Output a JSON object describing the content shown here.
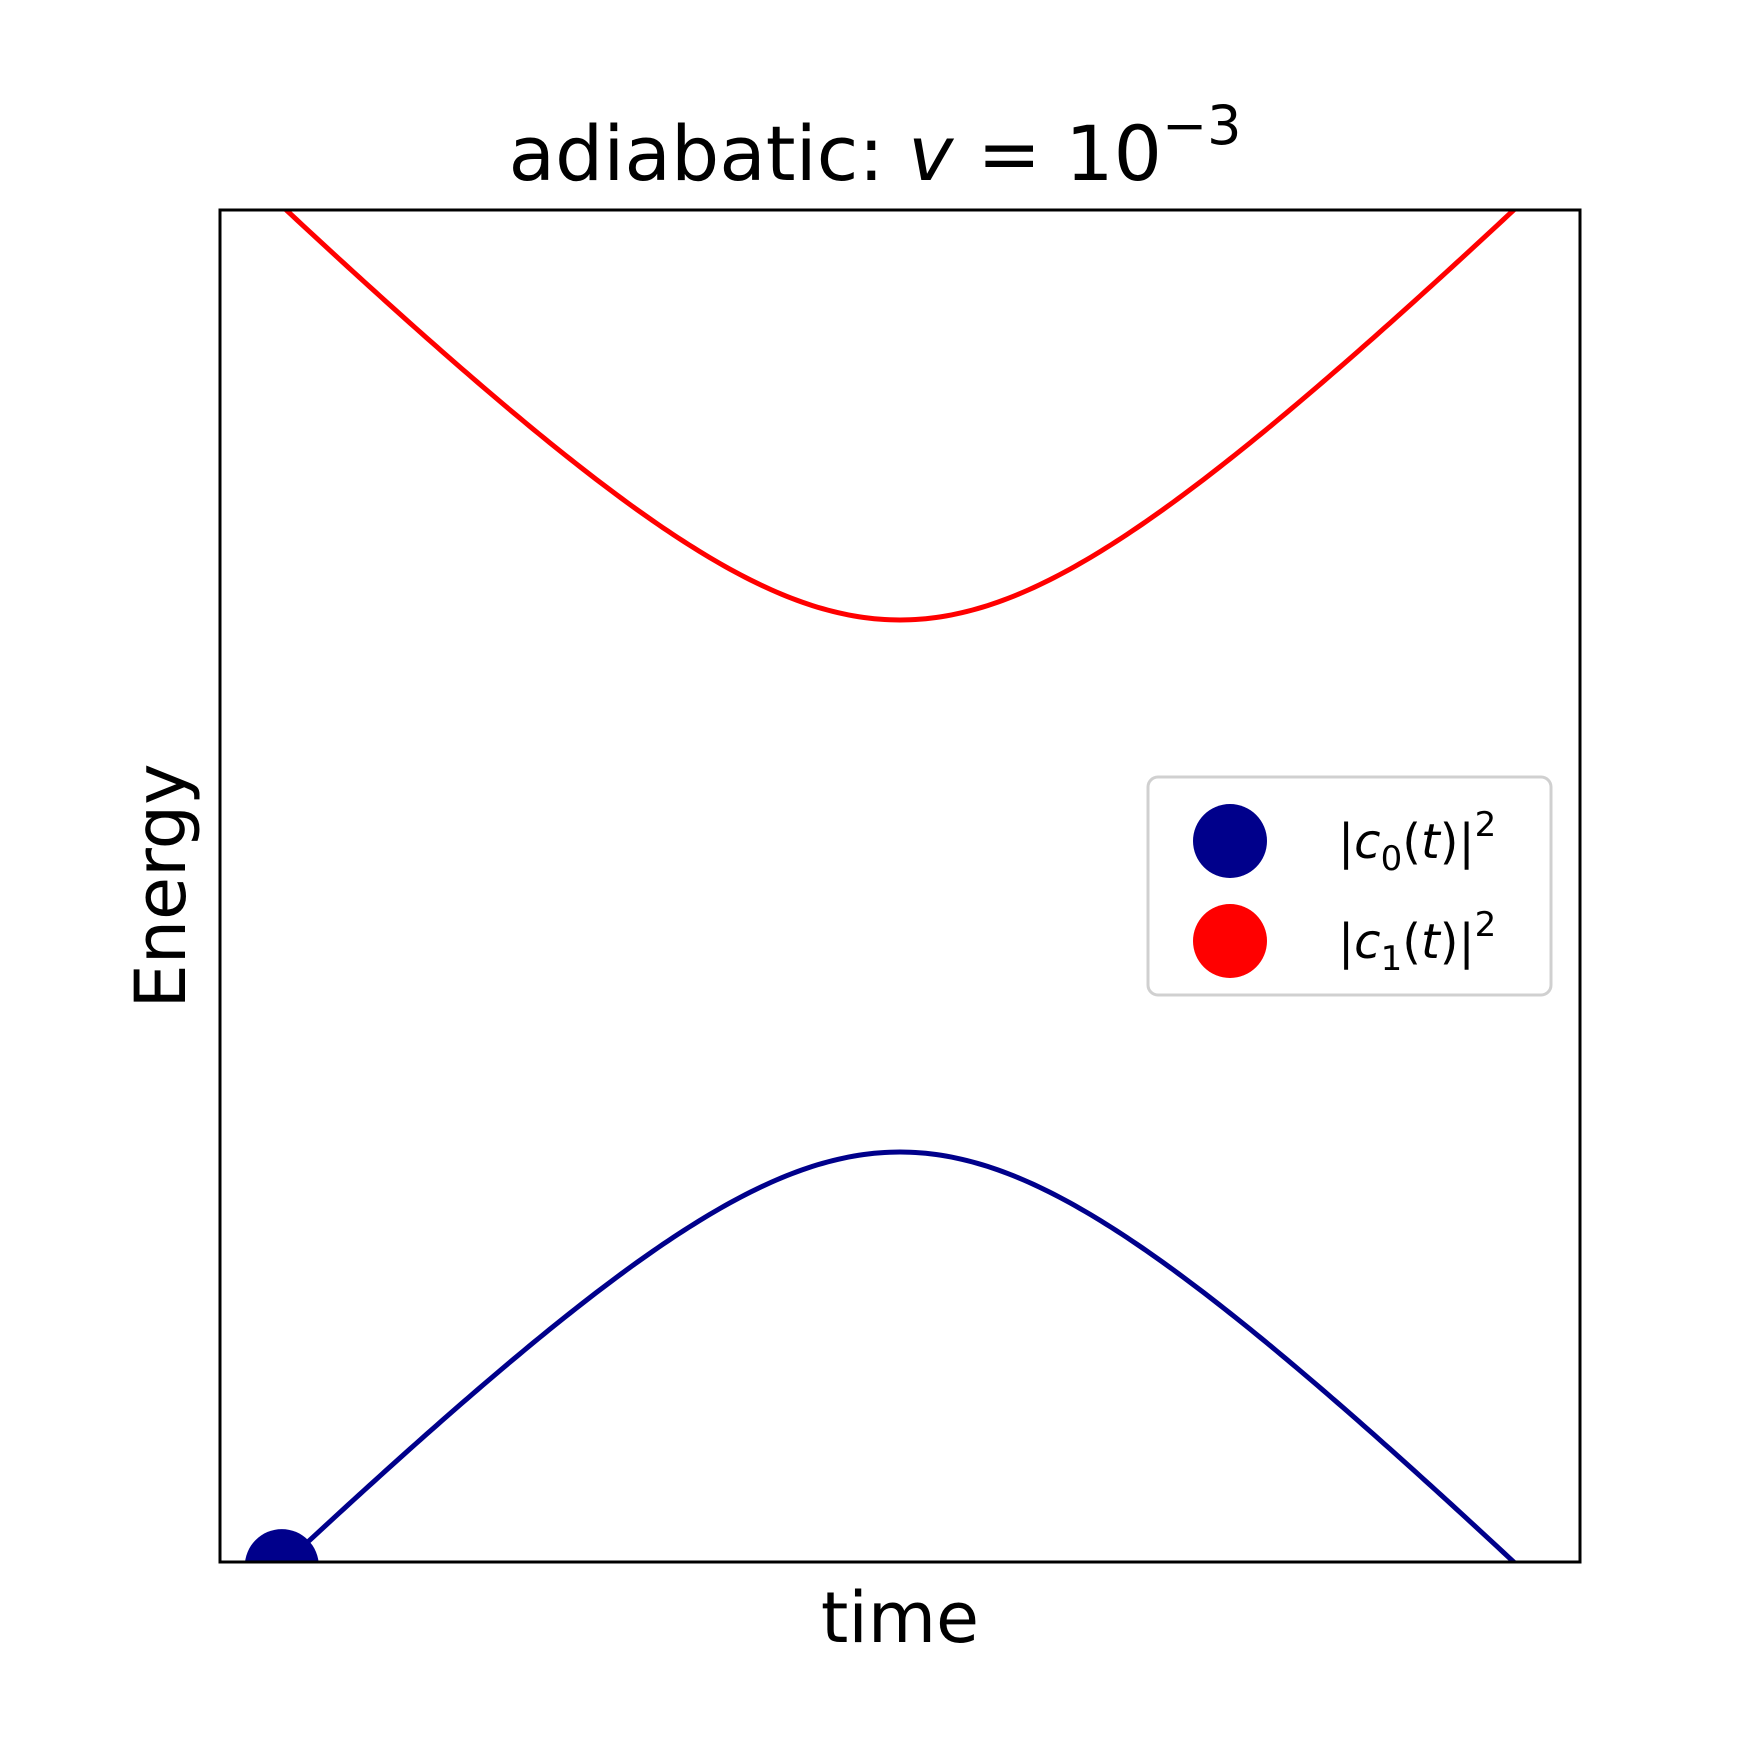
{
  "chart_data": {
    "type": "line",
    "title": {
      "prefix": "adiabatic: ",
      "variable": "v",
      "equals": " = ",
      "base": "10",
      "exponent": "−3"
    },
    "xlabel": "time",
    "ylabel": "Energy",
    "xlim": [
      -2.2,
      2.2
    ],
    "ylim": [
      -2.16,
      2.16
    ],
    "grid": false,
    "ticks": "none",
    "legend_position": "center-right",
    "energy_gap": 0.85,
    "t_range": [
      -2.0,
      2.0
    ],
    "series": [
      {
        "name": "|c0(t)|²",
        "symbol": "c",
        "subscript": "0",
        "level": "lower",
        "color": "#00008b"
      },
      {
        "name": "|c1(t)|²",
        "symbol": "c",
        "subscript": "1",
        "level": "upper",
        "color": "#ff0000"
      }
    ],
    "markers": [
      {
        "series": "|c0(t)|²",
        "t": -2.0,
        "color": "#00008b"
      }
    ]
  }
}
